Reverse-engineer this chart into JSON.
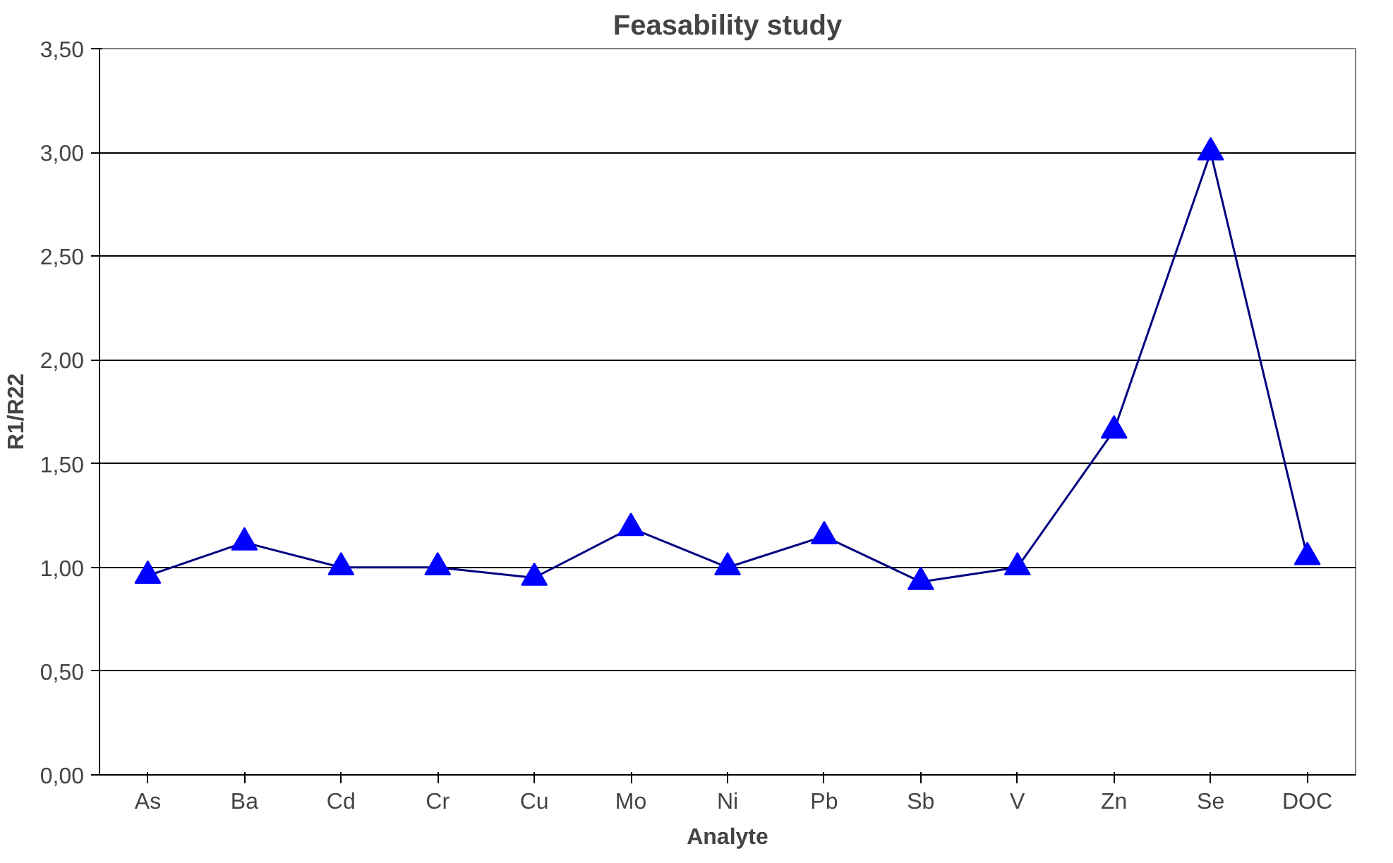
{
  "chart_data": {
    "type": "line",
    "title": "Feasability study",
    "xlabel": "Analyte",
    "ylabel": "R1/R22",
    "categories": [
      "As",
      "Ba",
      "Cd",
      "Cr",
      "Cu",
      "Mo",
      "Ni",
      "Pb",
      "Sb",
      "V",
      "Zn",
      "Se",
      "DOC"
    ],
    "series": [
      {
        "color": "#000080",
        "colors": [
          "#0000ff",
          "#0000ff",
          "#0000ff",
          "#0000ff",
          "#0000ff",
          "#0000ff",
          "#0000ff",
          "#0000ff",
          "#0000ff",
          "#0000ff",
          "#0000ff",
          "#0000ff",
          "#0000ff"
        ],
        "values": [
          0.96,
          1.12,
          1.0,
          1.0,
          0.95,
          1.19,
          1.0,
          1.15,
          0.93,
          1.0,
          1.66,
          3.0,
          1.05
        ]
      }
    ],
    "marker": "triangle",
    "ylim": [
      0,
      3.5
    ],
    "yticks": [
      {
        "value": 0,
        "label": "0,00"
      },
      {
        "value": 0.5,
        "label": "0,50"
      },
      {
        "value": 1,
        "label": "1,00"
      },
      {
        "value": 1.5,
        "label": "1,50"
      },
      {
        "value": 2,
        "label": "2,00"
      },
      {
        "value": 2.5,
        "label": "2,50"
      },
      {
        "value": 3,
        "label": "3,00"
      },
      {
        "value": 3.5,
        "label": "3,50"
      }
    ],
    "grid": "y"
  }
}
